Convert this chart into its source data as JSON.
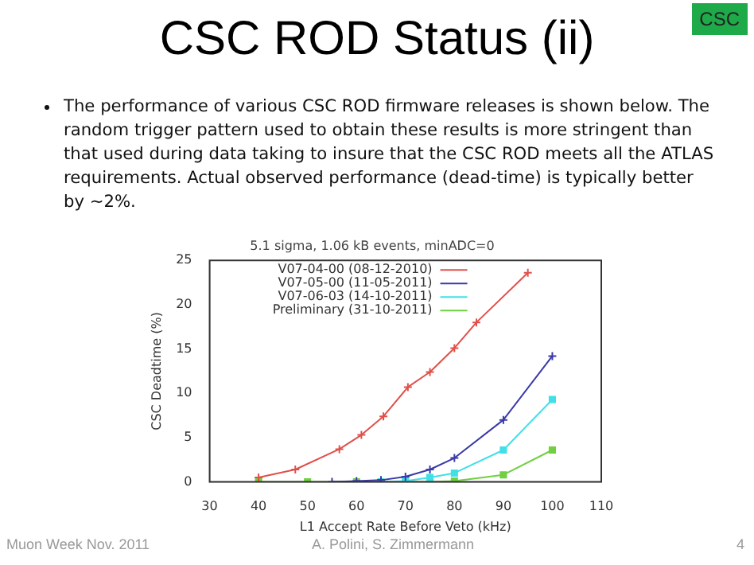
{
  "chart_data": {
    "type": "line",
    "title": "CSC ROD Status (ii)",
    "subtitle": "5.1 sigma, 1.06 kB events, minADC=0",
    "xlabel": "L1 Accept Rate Before Veto (kHz)",
    "ylabel": "CSC Deadtime (%)",
    "annotations": [
      "The performance of various CSC ROD firmware releases is shown below. The random trigger pattern used to obtain these results is more stringent than that used during data taking to insure that the CSC ROD meets all the ATLAS requirements. Actual observed performance (dead-time) is typically better by ~2%.",
      "CSC",
      "Muon Week Nov. 2011",
      "A. Polini, S. Zimmermann",
      "4"
    ],
    "xlim": [
      30,
      110
    ],
    "xticks": [
      30,
      40,
      50,
      60,
      70,
      80,
      90,
      100,
      110
    ],
    "ylim": [
      0,
      25
    ],
    "yticks": [
      0,
      5,
      10,
      15,
      20,
      25
    ],
    "legend": "top left",
    "series": [
      {
        "name": "V07-04-00 (08-12-2010)",
        "color": "#e0504a",
        "marker": "cross",
        "x": [
          40,
          47.5,
          56.5,
          61,
          65.5,
          70.5,
          75,
          80,
          84.5,
          95
        ],
        "values": [
          0.5,
          1.4,
          3.7,
          5.3,
          7.4,
          10.7,
          12.4,
          15.1,
          18.0,
          23.6
        ]
      },
      {
        "name": "V07-05-00 (11-05-2011)",
        "color": "#3a3aa8",
        "marker": "cross",
        "x": [
          55,
          60,
          65,
          70,
          75,
          80,
          90,
          100
        ],
        "values": [
          0,
          0.1,
          0.2,
          0.6,
          1.4,
          2.7,
          7.0,
          14.2
        ]
      },
      {
        "name": "V07-06-03 (14-10-2011)",
        "color": "#40e0e8",
        "marker": "square",
        "x": [
          65,
          70,
          75,
          80,
          90,
          100
        ],
        "values": [
          0,
          0.1,
          0.5,
          1.0,
          3.6,
          9.3
        ]
      },
      {
        "name": "Preliminary (31-10-2011)",
        "color": "#70d040",
        "marker": "square",
        "x": [
          40,
          50,
          60,
          70,
          75,
          80,
          90,
          100
        ],
        "values": [
          0,
          0,
          0,
          0,
          0,
          0.1,
          0.8,
          3.6
        ]
      }
    ]
  }
}
